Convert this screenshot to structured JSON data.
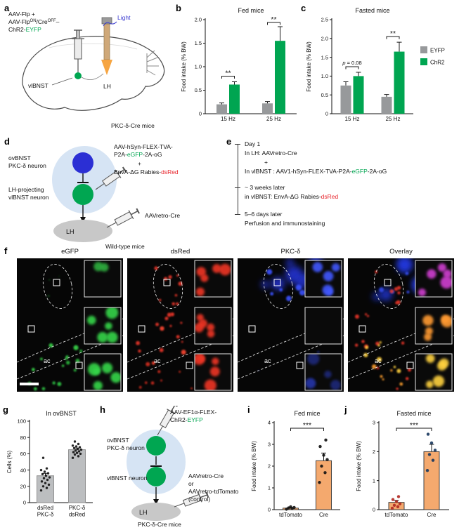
{
  "figure": {
    "panel_labels": {
      "a": "a",
      "b": "b",
      "c": "c",
      "d": "d",
      "e": "e",
      "f": "f",
      "g": "g",
      "h": "h",
      "i": "i",
      "j": "j"
    }
  },
  "colors": {
    "green": "#00A651",
    "neuron_blue": "#2B2FD4",
    "red": "#E8262D",
    "region_blue": "#D6E4F4",
    "region_gray": "#C8C8C8",
    "bar_gray": "#97999B",
    "bar_green": "#00A551",
    "bar_orange": "#F4A96E",
    "light_blue_text": "#3A3AD0"
  },
  "panel_a": {
    "virus_line1": "AAV-Flp +",
    "virus_line2_p1": "AAV-Flp",
    "virus_line2_sup1": "ON",
    "virus_line2_p2": "/Cre",
    "virus_line2_sup2": "OFF",
    "virus_line2_p3": "–",
    "virus_line3_p1": "ChR2-",
    "virus_line3_green": "EYFP",
    "light": "Light",
    "vlbnst": "vlBNST",
    "lh": "LH",
    "mouse": "PKC-δ-Cre mice"
  },
  "panel_d": {
    "neuron1_line1": "ovBNST",
    "neuron1_line2": "PKC-δ neuron",
    "neuron2_line1": "LH-projecting",
    "neuron2_line2": "vlBNST neuron",
    "virus1_line1": "AAV-hSyn-FLEX-TVA-",
    "virus1_line2_p1": "P2A-",
    "virus1_line2_green": "eGFP",
    "virus1_line2_p2": "-2A-oG",
    "virus1_plus": "+",
    "virus1_line3_p1": "EnvA-ΔG Rabies-",
    "virus1_line3_red": "dsRed",
    "virus2": "AAVretro-Cre",
    "lh": "LH",
    "mouse": "Wild-type mice"
  },
  "panel_e": {
    "t1": "Day 1",
    "t1_l1": "In LH:  AAVretro-Cre",
    "t1_plus": "+",
    "t1_l2_p1": "In vlBNST : AAV1-hSyn-FLEX-TVA-P2A-",
    "t1_l2_green": "eGFP",
    "t1_l2_p2": "-2A-oG",
    "t2": "~ 3 weeks later",
    "t2_l1_p1": "in vlBNST: EnvA-ΔG Rabies-",
    "t2_l1_red": "dsRed",
    "t3": "5–6 days later",
    "t3_l1": "Perfusion and immunostaining"
  },
  "panel_f": {
    "titles": [
      "eGFP",
      "dsRed",
      "PKC-δ",
      "Overlay"
    ],
    "ac_label": "ac"
  },
  "panel_h": {
    "virus1_line1": "AAV-EF1α-FLEX-",
    "virus1_line2_p1": "ChR2-",
    "virus1_line2_green": "EYFP",
    "neuron1_line1": "ovBNST",
    "neuron1_line2": "PKC-δ neuron",
    "neuron2": "vlBNST neuron",
    "virus2_l1": "AAVretro-Cre",
    "virus2_l2": "or",
    "virus2_l3": "AAVretro-tdTomato",
    "virus2_l4": "(control)",
    "lh": "LH",
    "mouse": "PKC-δ-Cre mice"
  },
  "chart_data": [
    {
      "panel": "b",
      "type": "bar",
      "title": "Fed mice",
      "ylabel": "Food intake (% BW)",
      "ylim": [
        0,
        2.0
      ],
      "yticks": [
        0,
        0.5,
        1.0,
        1.5,
        2.0
      ],
      "ytick_labels": [
        "0",
        "0.5",
        "1.0",
        "1.5",
        "2.0"
      ],
      "categories": [
        "15 Hz",
        "25 Hz"
      ],
      "series": [
        {
          "name": "EYFP",
          "color": "#97999B",
          "values": [
            0.2,
            0.22
          ],
          "errors": [
            0.03,
            0.04
          ]
        },
        {
          "name": "ChR2",
          "color": "#00A551",
          "values": [
            0.62,
            1.55
          ],
          "errors": [
            0.06,
            0.3
          ]
        }
      ],
      "sig_within": [
        {
          "cat": 0,
          "label": "**"
        },
        {
          "cat": 1,
          "label": "**"
        }
      ],
      "legend": false
    },
    {
      "panel": "c",
      "type": "bar",
      "title": "Fasted mice",
      "ylabel": "Food intake (% BW)",
      "ylim": [
        0,
        2.5
      ],
      "yticks": [
        0,
        0.5,
        1.0,
        1.5,
        2.0,
        2.5
      ],
      "ytick_labels": [
        "0",
        "0.5",
        "1.0",
        "1.5",
        "2.0",
        "2.5"
      ],
      "categories": [
        "15 Hz",
        "25 Hz"
      ],
      "series": [
        {
          "name": "EYFP",
          "color": "#97999B",
          "values": [
            0.75,
            0.45
          ],
          "errors": [
            0.1,
            0.06
          ]
        },
        {
          "name": "ChR2",
          "color": "#00A551",
          "values": [
            1.0,
            1.65
          ],
          "errors": [
            0.1,
            0.25
          ]
        }
      ],
      "sig_within": [
        {
          "cat": 0,
          "label": "p = 0.08"
        },
        {
          "cat": 1,
          "label": "**"
        }
      ],
      "legend": true
    },
    {
      "panel": "g",
      "type": "bar",
      "title": "In ovBNST",
      "ylabel": "Cells (%)",
      "ylim": [
        0,
        100
      ],
      "yticks": [
        0,
        20,
        40,
        60,
        80,
        100
      ],
      "ytick_labels": [
        "0",
        "20",
        "40",
        "60",
        "80",
        "100"
      ],
      "categories": [
        [
          "dsRed",
          "PKC-δ"
        ],
        [
          "PKC-δ",
          "dsRed"
        ]
      ],
      "series": [
        {
          "name": "Cells",
          "color": "#BCBEC0",
          "outline": "#8A8A8A",
          "values": [
            33,
            65
          ],
          "errors": [
            3,
            2
          ]
        }
      ],
      "points": [
        [
          15,
          18,
          20,
          22,
          24,
          26,
          28,
          30,
          31,
          33,
          35,
          36,
          38,
          40,
          42,
          55
        ],
        [
          55,
          57,
          59,
          60,
          61,
          62,
          63,
          64,
          65,
          66,
          67,
          68,
          69,
          70,
          72,
          75
        ]
      ],
      "point_color": "#111111",
      "legend": false
    },
    {
      "panel": "i",
      "type": "bar",
      "title": "Fed mice",
      "ylabel": "Food intake (% BW)",
      "ylim": [
        0,
        4
      ],
      "yticks": [
        0,
        1,
        2,
        3,
        4
      ],
      "ytick_labels": [
        "0",
        "1",
        "2",
        "3",
        "4"
      ],
      "categories": [
        "tdTomato",
        "Cre"
      ],
      "series": [
        {
          "name": "Food intake",
          "color": "#F4A96E",
          "outline": "#333333",
          "values": [
            0.07,
            2.25
          ],
          "errors": [
            0.03,
            0.35
          ]
        }
      ],
      "points": [
        [
          0.02,
          0.05,
          0.08,
          0.1,
          0.13
        ],
        [
          1.25,
          1.7,
          2.0,
          2.3,
          2.5,
          2.9,
          3.2
        ]
      ],
      "point_colors": [
        "#111111",
        "#111111"
      ],
      "sig_across": {
        "label": "***"
      },
      "legend": false
    },
    {
      "panel": "j",
      "type": "bar",
      "title": "Fasted mice",
      "ylabel": "Food intake (% BW)",
      "ylim": [
        0,
        3
      ],
      "yticks": [
        0,
        1,
        2,
        3
      ],
      "ytick_labels": [
        "0",
        "1",
        "2",
        "3"
      ],
      "categories": [
        "tdTomato",
        "Cre"
      ],
      "series": [
        {
          "name": "Food intake",
          "color": "#F4A96E",
          "outline": "#333333",
          "values": [
            0.25,
            2.0
          ],
          "errors": [
            0.07,
            0.25
          ]
        }
      ],
      "points": [
        [
          0.05,
          0.1,
          0.15,
          0.2,
          0.28,
          0.35,
          0.45
        ],
        [
          1.35,
          1.7,
          1.9,
          2.05,
          2.3,
          2.6
        ]
      ],
      "point_colors": [
        "#B02820",
        "#17365D"
      ],
      "sig_across": {
        "label": "***"
      },
      "legend": false
    }
  ]
}
